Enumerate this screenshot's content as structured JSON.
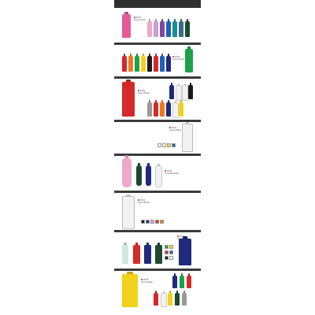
{
  "colors": {
    "dark_bar": "#2e2e2e",
    "label_accent": "#c0262d",
    "pink": "#e25b9a",
    "light_pink": "#f0a8c8",
    "lilac": "#c8a0d8",
    "purple": "#7a4aa0",
    "blue": "#2060b8",
    "teal": "#178f8f",
    "green": "#1f9f4a",
    "dark_green": "#1d4a2e",
    "red": "#d42a2a",
    "orange": "#f0781e",
    "yellow": "#f2d21a",
    "navy": "#1e2a7a",
    "black": "#1a1a1a",
    "white": "#f2f2f2",
    "grey": "#9a9a9a"
  },
  "sections": [
    {
      "id": "s1",
      "label_line1": "BT01",
      "label_line2": "Sports Bottle"
    },
    {
      "id": "s2",
      "label_line1": "BT02",
      "label_line2": "Sports Bottle"
    },
    {
      "id": "s3",
      "label_line1": "BT03",
      "label_line2": "Sports Bottle"
    },
    {
      "id": "s4",
      "label_line1": "BT04",
      "label_line2": "Sports Bottle"
    },
    {
      "id": "s5",
      "label_line1": "BT05",
      "label_line2": "Dumbbell Bottle"
    },
    {
      "id": "s6",
      "label_line1": "BT06",
      "label_line2": "Sports Bottle"
    },
    {
      "id": "s7",
      "label_line1": "BT07",
      "label_line2": "Sports Bottle"
    },
    {
      "id": "s8",
      "label_line1": "BT08",
      "label_line2": "Sports Bottle"
    }
  ]
}
